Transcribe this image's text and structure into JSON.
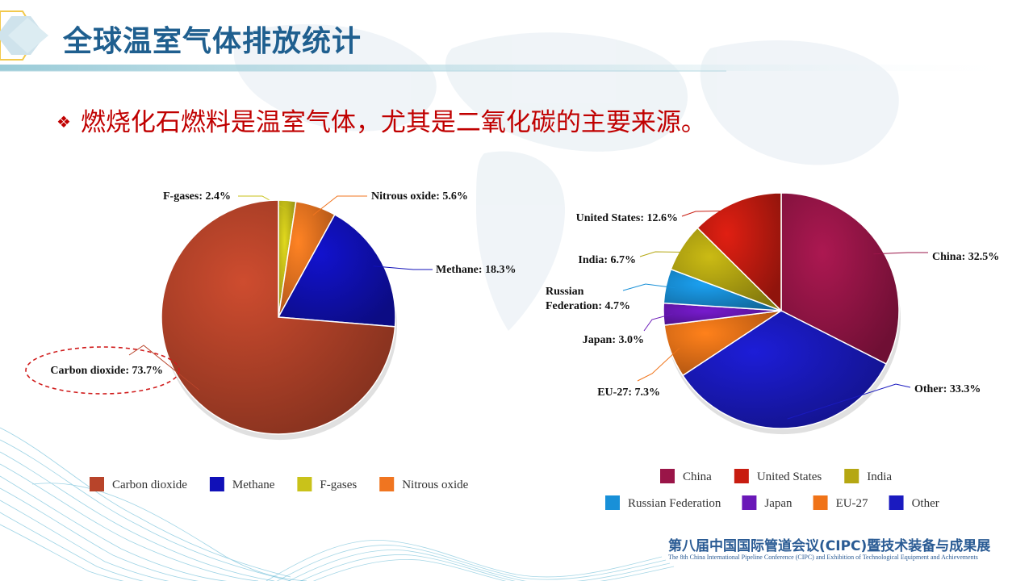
{
  "header": {
    "title": "全球温室气体排放统计"
  },
  "headline": {
    "bullet": "❖",
    "text": "燃烧化石燃料是温室气体，尤其是二氧化碳的主要来源。"
  },
  "footer": {
    "cn": "第八届中国国际管道会议(CIPC)暨技术装备与成果展",
    "en": "The 8th China International Pipeline Conference (CIPC) and Exhibition of Technological Equipment and Achievements"
  },
  "colors": {
    "title": "#1f5f8f",
    "headline": "#c00000",
    "highlight_ellipse": "#d01c1c"
  },
  "chart_data": [
    {
      "type": "pie",
      "title": "",
      "unit": "%",
      "highlighted": "Carbon dioxide",
      "legend_placement": "bottom",
      "slices": [
        {
          "name": "F-gases",
          "value": 2.4,
          "label": "F-gases: 2.4%",
          "color": "#c9c21a"
        },
        {
          "name": "Nitrous oxide",
          "value": 5.6,
          "label": "Nitrous oxide: 5.6%",
          "color": "#f07520"
        },
        {
          "name": "Methane",
          "value": 18.3,
          "label": "Methane: 18.3%",
          "color": "#1010b8"
        },
        {
          "name": "Carbon dioxide",
          "value": 73.7,
          "label": "Carbon dioxide: 73.7%",
          "color": "#b8442a"
        }
      ],
      "legend": [
        {
          "name": "Carbon dioxide",
          "color": "#b8442a"
        },
        {
          "name": "Methane",
          "color": "#1010b8"
        },
        {
          "name": "F-gases",
          "color": "#c9c21a"
        },
        {
          "name": "Nitrous oxide",
          "color": "#f07520"
        }
      ]
    },
    {
      "type": "pie",
      "title": "",
      "unit": "%",
      "legend_placement": "bottom",
      "slices": [
        {
          "name": "China",
          "value": 32.5,
          "label": "China: 32.5%",
          "color": "#9a1548"
        },
        {
          "name": "Other",
          "value": 33.3,
          "label": "Other: 33.3%",
          "color": "#1a1ac0"
        },
        {
          "name": "EU-27",
          "value": 7.3,
          "label": "EU-27: 7.3%",
          "color": "#f07318"
        },
        {
          "name": "Japan",
          "value": 3.0,
          "label": "Japan: 3.0%",
          "color": "#6a18b8"
        },
        {
          "name": "Russian Federation",
          "value": 4.7,
          "label_lines": [
            "Russian",
            "Federation: 4.7%"
          ],
          "color": "#1890d8"
        },
        {
          "name": "India",
          "value": 6.7,
          "label": "India: 6.7%",
          "color": "#b5a712"
        },
        {
          "name": "United States",
          "value": 12.6,
          "label": "United States: 12.6%",
          "color": "#c81c10"
        }
      ],
      "legend": [
        {
          "name": "China",
          "color": "#9a1548"
        },
        {
          "name": "United States",
          "color": "#c81c10"
        },
        {
          "name": "India",
          "color": "#b5a712"
        },
        {
          "name": "Russian Federation",
          "color": "#1890d8"
        },
        {
          "name": "Japan",
          "color": "#6a18b8"
        },
        {
          "name": "EU-27",
          "color": "#f07318"
        },
        {
          "name": "Other",
          "color": "#1a1ac0"
        }
      ]
    }
  ]
}
